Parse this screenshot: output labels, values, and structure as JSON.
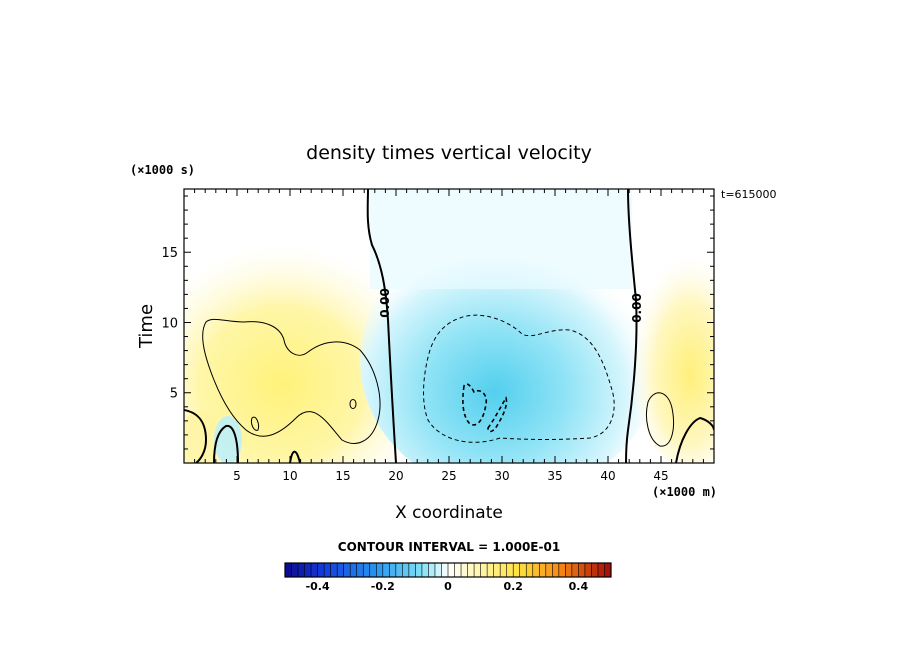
{
  "chart_data": {
    "type": "heatmap",
    "title": "density times vertical velocity",
    "xlabel": "X coordinate",
    "ylabel": "Time",
    "x_unit_label": "(×1000 m)",
    "y_unit_label": "(×1000 s)",
    "time_label": "t=615000",
    "contour_interval_text": "CONTOUR INTERVAL = 1.000E-01",
    "xlim": [
      0,
      50
    ],
    "ylim": [
      0,
      19.5
    ],
    "x_ticks": [
      5,
      10,
      15,
      20,
      25,
      30,
      35,
      40,
      45
    ],
    "y_ticks": [
      5,
      10,
      15
    ],
    "zero_contour_label": "0.00",
    "zero_contour_labels": [
      {
        "x": 19.2,
        "y": 11.8
      },
      {
        "x": 43.6,
        "y": 11.5
      }
    ],
    "colorbar": {
      "range": [
        -0.5,
        0.5
      ],
      "tick_values": [
        -0.4,
        -0.2,
        0,
        0.2,
        0.4
      ],
      "tick_labels": [
        "-0.4",
        "-0.2",
        "0",
        "0.2",
        "0.4"
      ]
    },
    "features": [
      {
        "name": "positive-lobe-left",
        "x": 9.5,
        "y": 6.0,
        "value": 0.15
      },
      {
        "name": "negative-lobe-center",
        "x": 29.0,
        "y": 5.0,
        "value": -0.25
      },
      {
        "name": "positive-lobe-right",
        "x": 47.5,
        "y": 4.0,
        "value": 0.12
      }
    ]
  },
  "colors": {
    "neg_strong": "#0a0a8c",
    "neg_mid": "#1e8cf0",
    "neg_light": "#a0ecf8",
    "neutral": "#ffffff",
    "pos_light": "#fff4b4",
    "pos_mid": "#fff03c",
    "pos_strong": "#a00a0a"
  }
}
